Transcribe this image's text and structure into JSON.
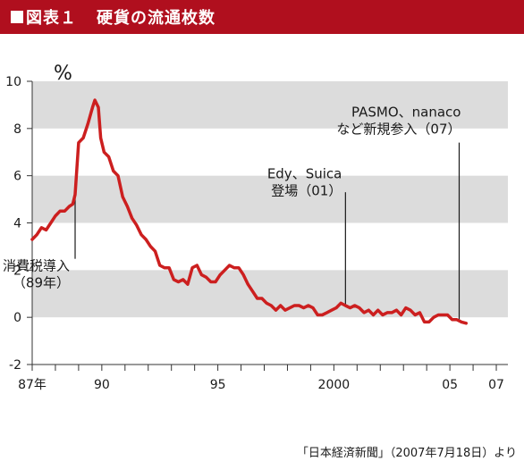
{
  "header": {
    "figure_label": "図表１",
    "title": "硬貨の流通枚数"
  },
  "source": "「日本経済新聞」（2007年7月18日）より",
  "chart_data": {
    "type": "line",
    "title": "硬貨の流通枚数",
    "ylabel": "%",
    "ylim": [
      -2,
      10
    ],
    "yticks": [
      -2,
      0,
      2,
      4,
      6,
      8,
      10
    ],
    "grid": "alternating horizontal bands",
    "xlim": [
      1987.0,
      2007.5
    ],
    "xtick_labels": [
      {
        "x": 1987,
        "label": "87年"
      },
      {
        "x": 1990,
        "label": "90"
      },
      {
        "x": 1995,
        "label": "95"
      },
      {
        "x": 2000,
        "label": "2000"
      },
      {
        "x": 2005,
        "label": "05"
      },
      {
        "x": 2007,
        "label": "07"
      }
    ],
    "series_color": "#cc1f1f",
    "series": [
      {
        "values": [
          [
            1987.0,
            3.3
          ],
          [
            1987.2,
            3.5
          ],
          [
            1987.4,
            3.8
          ],
          [
            1987.6,
            3.7
          ],
          [
            1987.8,
            4.0
          ],
          [
            1988.0,
            4.3
          ],
          [
            1988.2,
            4.5
          ],
          [
            1988.4,
            4.5
          ],
          [
            1988.6,
            4.7
          ],
          [
            1988.75,
            4.8
          ],
          [
            1988.85,
            5.2
          ],
          [
            1989.0,
            7.4
          ],
          [
            1989.2,
            7.6
          ],
          [
            1989.4,
            8.2
          ],
          [
            1989.6,
            8.9
          ],
          [
            1989.7,
            9.2
          ],
          [
            1989.85,
            8.9
          ],
          [
            1989.95,
            7.6
          ],
          [
            1990.1,
            7.0
          ],
          [
            1990.3,
            6.8
          ],
          [
            1990.5,
            6.2
          ],
          [
            1990.7,
            6.0
          ],
          [
            1990.9,
            5.1
          ],
          [
            1991.1,
            4.7
          ],
          [
            1991.3,
            4.2
          ],
          [
            1991.5,
            3.9
          ],
          [
            1991.7,
            3.5
          ],
          [
            1991.9,
            3.3
          ],
          [
            1992.1,
            3.0
          ],
          [
            1992.3,
            2.8
          ],
          [
            1992.5,
            2.2
          ],
          [
            1992.7,
            2.1
          ],
          [
            1992.9,
            2.1
          ],
          [
            1993.1,
            1.6
          ],
          [
            1993.3,
            1.5
          ],
          [
            1993.5,
            1.6
          ],
          [
            1993.7,
            1.4
          ],
          [
            1993.9,
            2.1
          ],
          [
            1994.1,
            2.2
          ],
          [
            1994.3,
            1.8
          ],
          [
            1994.5,
            1.7
          ],
          [
            1994.7,
            1.5
          ],
          [
            1994.9,
            1.5
          ],
          [
            1995.1,
            1.8
          ],
          [
            1995.3,
            2.0
          ],
          [
            1995.5,
            2.2
          ],
          [
            1995.7,
            2.1
          ],
          [
            1995.9,
            2.1
          ],
          [
            1996.1,
            1.8
          ],
          [
            1996.3,
            1.4
          ],
          [
            1996.5,
            1.1
          ],
          [
            1996.7,
            0.8
          ],
          [
            1996.9,
            0.8
          ],
          [
            1997.1,
            0.6
          ],
          [
            1997.3,
            0.5
          ],
          [
            1997.5,
            0.3
          ],
          [
            1997.7,
            0.5
          ],
          [
            1997.9,
            0.3
          ],
          [
            1998.1,
            0.4
          ],
          [
            1998.3,
            0.5
          ],
          [
            1998.5,
            0.5
          ],
          [
            1998.7,
            0.4
          ],
          [
            1998.9,
            0.5
          ],
          [
            1999.1,
            0.4
          ],
          [
            1999.3,
            0.1
          ],
          [
            1999.5,
            0.1
          ],
          [
            1999.7,
            0.2
          ],
          [
            1999.9,
            0.3
          ],
          [
            2000.1,
            0.4
          ],
          [
            2000.3,
            0.6
          ],
          [
            2000.5,
            0.5
          ],
          [
            2000.7,
            0.4
          ],
          [
            2000.9,
            0.5
          ],
          [
            2001.1,
            0.4
          ],
          [
            2001.3,
            0.2
          ],
          [
            2001.5,
            0.3
          ],
          [
            2001.7,
            0.1
          ],
          [
            2001.9,
            0.3
          ],
          [
            2002.1,
            0.1
          ],
          [
            2002.3,
            0.2
          ],
          [
            2002.5,
            0.2
          ],
          [
            2002.7,
            0.3
          ],
          [
            2002.9,
            0.1
          ],
          [
            2003.1,
            0.4
          ],
          [
            2003.3,
            0.3
          ],
          [
            2003.5,
            0.1
          ],
          [
            2003.7,
            0.2
          ],
          [
            2003.9,
            -0.2
          ],
          [
            2004.1,
            -0.2
          ],
          [
            2004.3,
            0.0
          ],
          [
            2004.5,
            0.1
          ],
          [
            2004.7,
            0.1
          ],
          [
            2004.9,
            0.1
          ],
          [
            2005.1,
            -0.1
          ],
          [
            2005.3,
            -0.1
          ],
          [
            2005.5,
            -0.2
          ],
          [
            2005.7,
            -0.25
          ]
        ]
      }
    ],
    "annotations": [
      {
        "lines": [
          "消費税導入",
          "（89年）"
        ],
        "x": 1988.85,
        "y": 5.2,
        "label_side": "below-left"
      },
      {
        "lines": [
          "Edy、Suica",
          "登場（01）"
        ],
        "x": 2000.5,
        "y": 0.5,
        "label_side": "above-left"
      },
      {
        "lines": [
          "PASMO、nanaco",
          "など新規参入（07）"
        ],
        "x": 2005.4,
        "y": -0.1,
        "label_side": "above-left"
      }
    ]
  }
}
